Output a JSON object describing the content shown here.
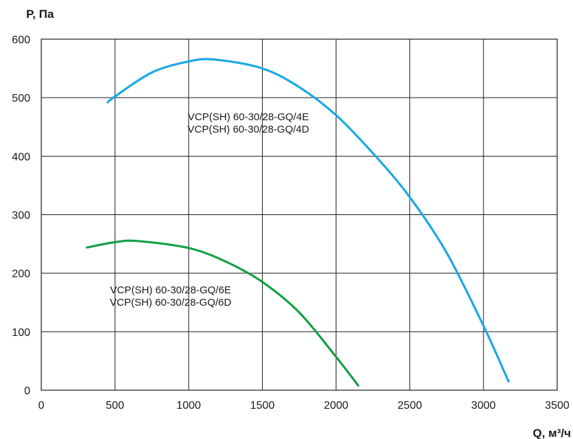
{
  "chart_data": {
    "type": "line",
    "xlabel": "Q, м³/ч",
    "ylabel": "P, Па",
    "xlim": [
      0,
      3500
    ],
    "ylim": [
      0,
      600
    ],
    "x_ticks": [
      0,
      500,
      1000,
      1500,
      2000,
      2500,
      3000,
      3500
    ],
    "y_ticks": [
      0,
      100,
      200,
      300,
      400,
      500,
      600
    ],
    "grid": true,
    "series": [
      {
        "name": "VCP(SH) 60-30/28-GQ/4E\nVCP(SH) 60-30/28-GQ/4D",
        "color": "#1aa9e4",
        "x": [
          450,
          500,
          750,
          1000,
          1180,
          1500,
          1750,
          2000,
          2250,
          2500,
          2750,
          3000,
          3170
        ],
        "y": [
          492,
          502,
          543,
          562,
          565,
          550,
          518,
          470,
          405,
          330,
          235,
          110,
          15
        ]
      },
      {
        "name": "VCP(SH) 60-30/28-GQ/6E\nVCP(SH) 60-30/28-GQ/6D",
        "color": "#16a048",
        "x": [
          310,
          500,
          650,
          1000,
          1250,
          1500,
          1750,
          2000,
          2150
        ],
        "y": [
          244,
          253,
          255,
          243,
          220,
          185,
          133,
          57,
          8
        ]
      }
    ],
    "annotations": [
      [
        "VCP(SH) 60-30/28-GQ/4E",
        "VCP(SH) 60-30/28-GQ/4D"
      ],
      [
        "VCP(SH) 60-30/28-GQ/6E",
        "VCP(SH) 60-30/28-GQ/6D"
      ]
    ]
  }
}
